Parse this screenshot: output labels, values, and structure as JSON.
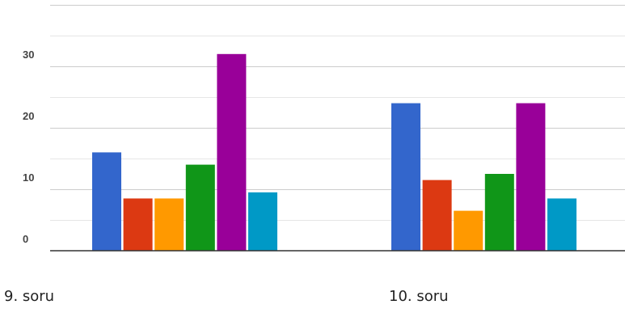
{
  "chart_data": {
    "type": "bar",
    "categories": [
      "9. soru",
      "10. soru"
    ],
    "series": [
      {
        "color": "#3366cc",
        "values": [
          16,
          24
        ]
      },
      {
        "color": "#dc3912",
        "values": [
          8.5,
          11.5
        ]
      },
      {
        "color": "#ff9900",
        "values": [
          8.5,
          6.5
        ]
      },
      {
        "color": "#109618",
        "values": [
          14,
          12.5
        ]
      },
      {
        "color": "#990099",
        "values": [
          32,
          24
        ]
      },
      {
        "color": "#0099c6",
        "values": [
          9.5,
          8.5
        ]
      }
    ],
    "yticks": [
      "0",
      "10",
      "20",
      "30",
      "40"
    ],
    "ylim": [
      0,
      40
    ],
    "grid": true,
    "legend": "none"
  }
}
